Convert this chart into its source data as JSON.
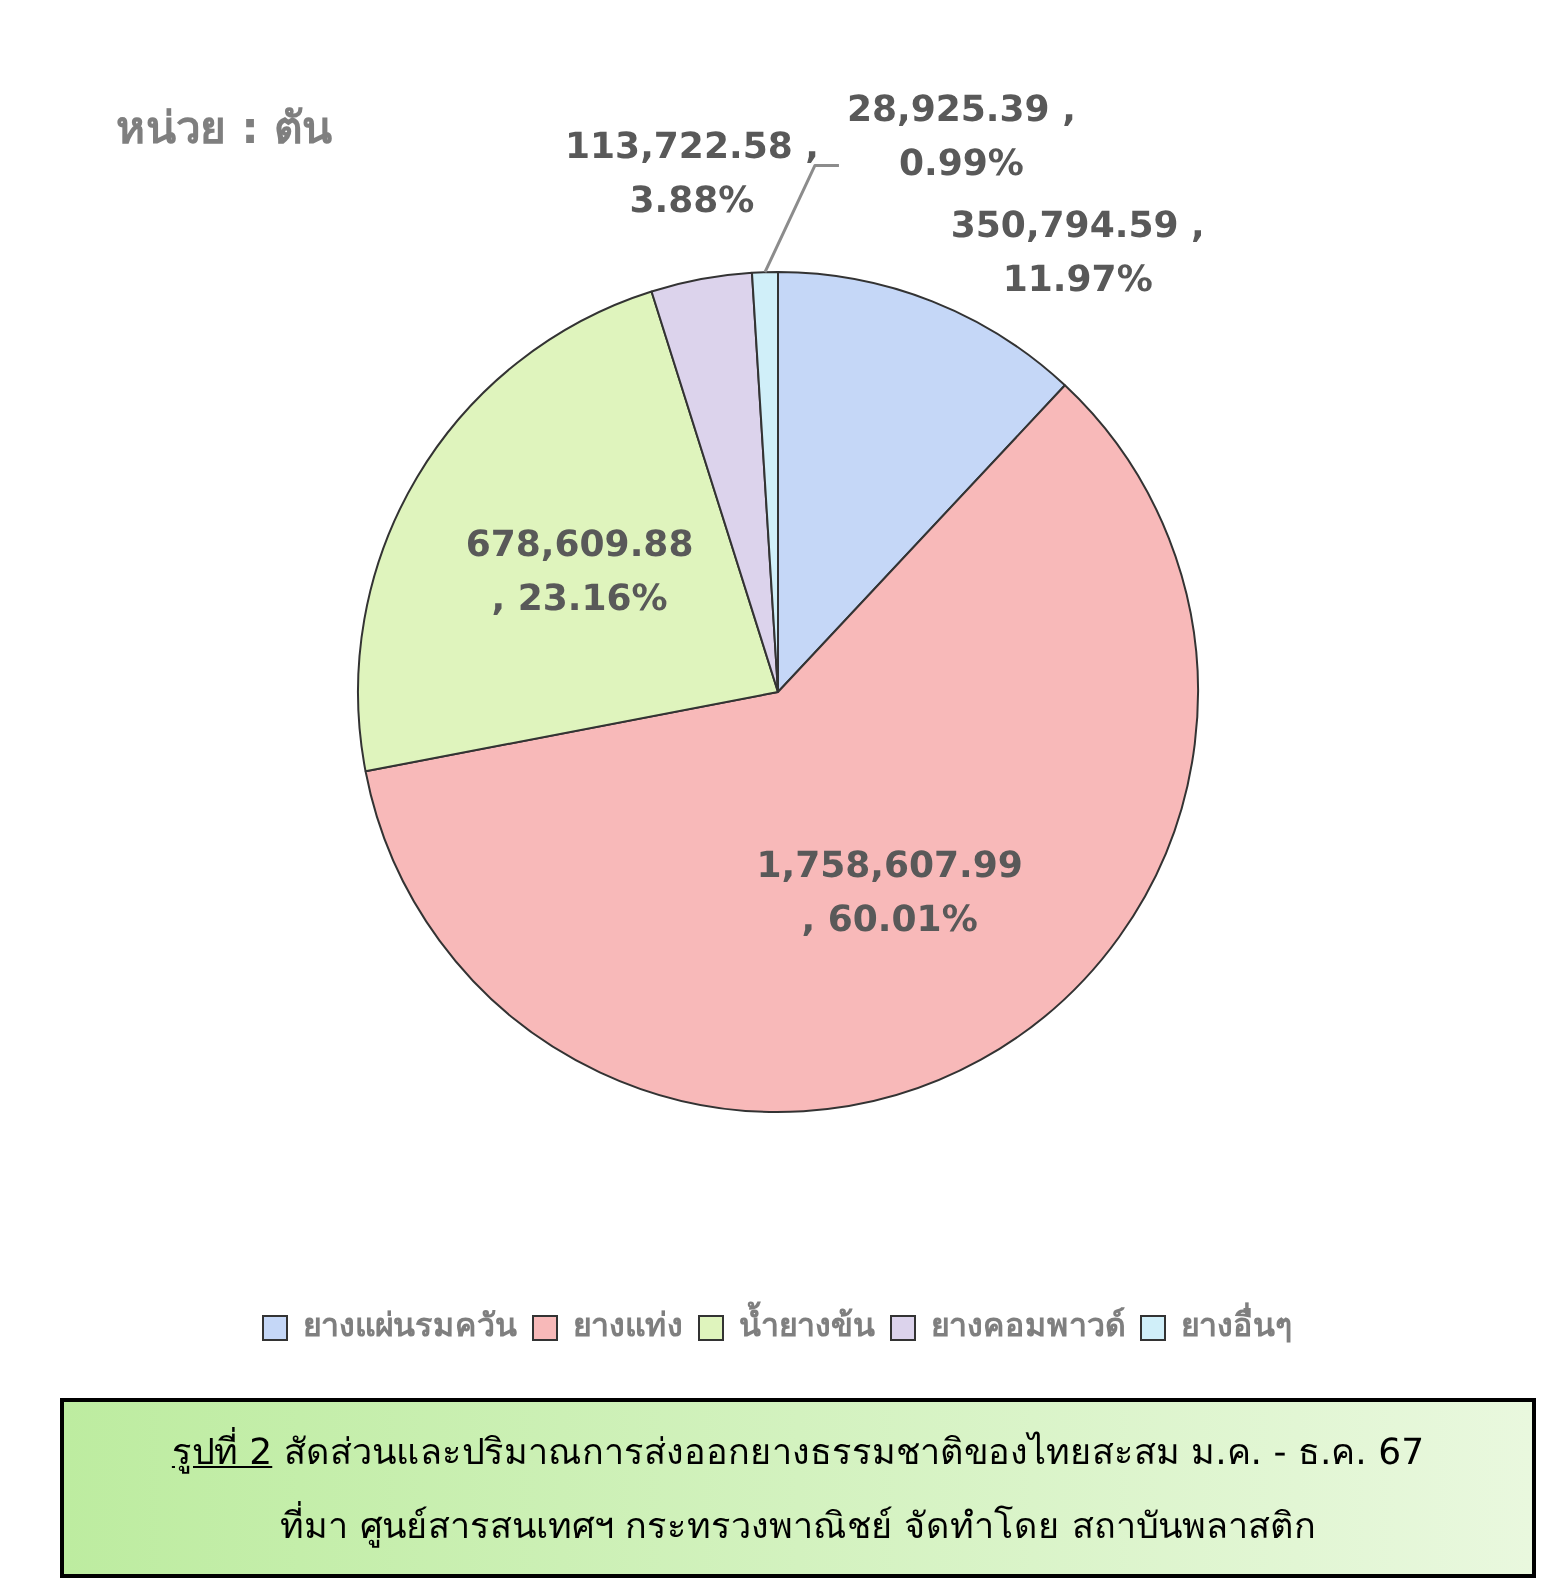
{
  "chart_data": {
    "type": "pie",
    "title": "หน่วย : ตัน",
    "categories": [
      "ยางแผ่นรมควัน",
      "ยางแท่ง",
      "น้ำยางข้น",
      "ยางคอมพาวด์",
      "ยางอื่นๆ"
    ],
    "values": [
      350794.59,
      1758607.99,
      678609.88,
      113722.58,
      28925.39
    ],
    "colors": [
      "#c5d7f7",
      "#f8b9b9",
      "#dff4bd",
      "#dcd3ec",
      "#d0eff9"
    ],
    "value_labels": [
      "350,794.59 ,\n11.97%",
      "1,758,607.99\n, 60.01%",
      "678,609.88\n, 23.16%",
      "113,722.58 ,\n3.88%",
      "28,925.39 ,\n0.99%"
    ],
    "legend": "bottom",
    "annotations": [
      "รูปที่ 2",
      "สัดส่วนและปริมาณการส่งออกยางธรรมชาติของไทยสะสม ม.ค. - ธ.ค. 67",
      "ที่มา ศูนย์สารสนเทศฯ กระทรวงพาณิชย์ จัดทำโดย สถาบันพลาสติก"
    ]
  }
}
